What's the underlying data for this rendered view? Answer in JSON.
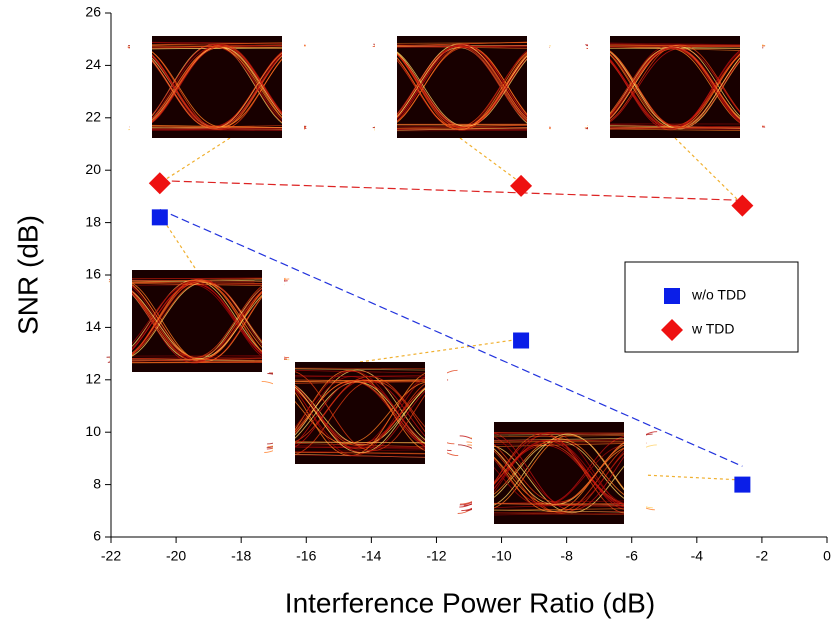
{
  "chart_data": {
    "type": "scatter",
    "xlabel": "Interference Power Ratio (dB)",
    "ylabel": "SNR (dB)",
    "xlim": [
      -22,
      0
    ],
    "xticks": [
      -22,
      -20,
      -18,
      -16,
      -14,
      -12,
      -10,
      -8,
      -6,
      -4,
      -2,
      0
    ],
    "ylim": [
      6,
      26
    ],
    "yticks": [
      6,
      8,
      10,
      12,
      14,
      16,
      18,
      20,
      22,
      24,
      26
    ],
    "legend": "right",
    "series": [
      {
        "name": "w/o TDD",
        "color": "#0a1ee8",
        "marker": "square",
        "x": [
          -20.5,
          -9.4,
          -2.6
        ],
        "values": [
          18.2,
          13.5,
          8.0
        ]
      },
      {
        "name": "w TDD",
        "color": "#ee1111",
        "marker": "diamond",
        "x": [
          -20.5,
          -9.4,
          -2.6
        ],
        "values": [
          19.5,
          19.4,
          18.65
        ]
      }
    ],
    "fits": [
      {
        "color": "#2233dd",
        "x": [
          -20.5,
          -2.6
        ],
        "values": [
          18.5,
          8.7
        ]
      },
      {
        "color": "#dd2222",
        "x": [
          -20.5,
          -2.6
        ],
        "values": [
          19.6,
          18.85
        ]
      }
    ]
  }
}
